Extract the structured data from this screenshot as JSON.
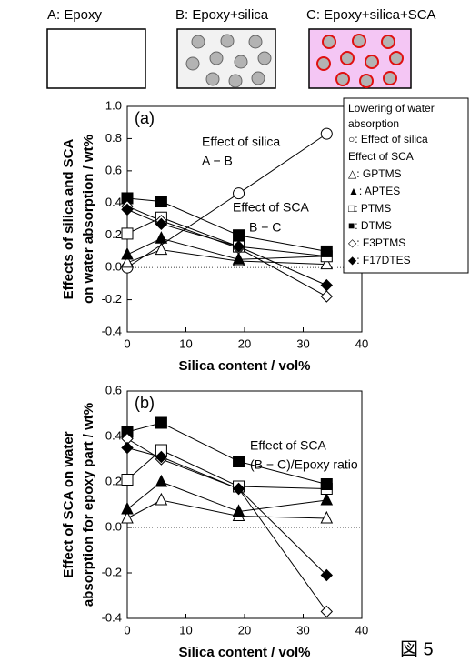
{
  "schematic": {
    "labels": [
      "A: Epoxy",
      "B: Epoxy+silica",
      "C: Epoxy+silica+SCA"
    ]
  },
  "figure_label": "図 5",
  "chart_data": [
    {
      "type": "line",
      "panel_label": "(a)",
      "ylabel": [
        "Effects of silica and SCA",
        "on water absorption / wt%"
      ],
      "xlabel": "Silica content / vol%",
      "xlim": [
        0,
        40
      ],
      "xticks": [
        0,
        10,
        20,
        30,
        40
      ],
      "ylim": [
        -0.4,
        1.0
      ],
      "yticks": [
        -0.4,
        -0.2,
        {
          "value": 0,
          "label": "0.0"
        },
        0.2,
        0.4,
        0.6,
        0.8,
        {
          "value": 1,
          "label": "1.0"
        }
      ],
      "annotations": [
        "Effect of silica",
        "A − B",
        "Effect of SCA",
        "B − C"
      ],
      "legend_title": [
        "Lowering of water",
        "absorption"
      ],
      "legend_group_title": "Effect of SCA",
      "series": [
        {
          "name": "○: Effect of silica",
          "marker": "circle",
          "fill": "#ffffff",
          "color": "#000000",
          "x": [
            0,
            19,
            34
          ],
          "values": [
            0.0,
            0.46,
            0.83
          ]
        },
        {
          "name": "△: GPTMS",
          "marker": "triangle",
          "fill": "#ffffff",
          "color": "#000000",
          "x": [
            0,
            5.8,
            19,
            34
          ],
          "values": [
            0.03,
            0.11,
            0.04,
            0.02
          ]
        },
        {
          "name": "▲: APTES",
          "marker": "triangle",
          "fill": "#000000",
          "color": "#000000",
          "x": [
            0,
            5.8,
            19,
            34
          ],
          "values": [
            0.08,
            0.18,
            0.05,
            0.07
          ]
        },
        {
          "name": "□: PTMS",
          "marker": "square",
          "fill": "#ffffff",
          "color": "#000000",
          "x": [
            0,
            5.8,
            19,
            34
          ],
          "values": [
            0.21,
            0.31,
            0.13,
            0.07
          ]
        },
        {
          "name": "■: DTMS",
          "marker": "square",
          "fill": "#000000",
          "color": "#000000",
          "x": [
            0,
            5.8,
            19,
            34
          ],
          "values": [
            0.43,
            0.41,
            0.2,
            0.1
          ]
        },
        {
          "name": "◇: F3PTMS",
          "marker": "diamond",
          "fill": "#ffffff",
          "color": "#000000",
          "x": [
            0,
            5.8,
            19,
            34
          ],
          "values": [
            0.38,
            0.29,
            0.12,
            -0.18
          ]
        },
        {
          "name": "◆: F17DTES",
          "marker": "diamond",
          "fill": "#000000",
          "color": "#000000",
          "x": [
            0,
            5.8,
            19,
            34
          ],
          "values": [
            0.36,
            0.27,
            0.13,
            -0.11
          ]
        }
      ]
    },
    {
      "type": "line",
      "panel_label": "(b)",
      "ylabel": [
        "Effect of SCA on water",
        "absorption for epoxy part / wt%"
      ],
      "xlabel": "Silica content / vol%",
      "xlim": [
        0,
        40
      ],
      "xticks": [
        0,
        10,
        20,
        30,
        40
      ],
      "ylim": [
        -0.4,
        0.6
      ],
      "yticks": [
        -0.4,
        -0.2,
        {
          "value": 0,
          "label": "0.0"
        },
        0.2,
        0.4,
        0.6
      ],
      "annotations": [
        "Effect of SCA",
        "(B − C)/Epoxy ratio"
      ],
      "series": [
        {
          "marker": "triangle",
          "fill": "#ffffff",
          "color": "#000000",
          "x": [
            0,
            5.8,
            19,
            34
          ],
          "values": [
            0.04,
            0.12,
            0.05,
            0.04
          ]
        },
        {
          "marker": "triangle",
          "fill": "#000000",
          "color": "#000000",
          "x": [
            0,
            5.8,
            19,
            34
          ],
          "values": [
            0.08,
            0.2,
            0.07,
            0.12
          ]
        },
        {
          "marker": "square",
          "fill": "#ffffff",
          "color": "#000000",
          "x": [
            0,
            5.8,
            19,
            34
          ],
          "values": [
            0.21,
            0.34,
            0.18,
            0.17
          ]
        },
        {
          "marker": "square",
          "fill": "#000000",
          "color": "#000000",
          "x": [
            0,
            5.8,
            19,
            34
          ],
          "values": [
            0.42,
            0.46,
            0.29,
            0.19
          ]
        },
        {
          "marker": "diamond",
          "fill": "#ffffff",
          "color": "#000000",
          "x": [
            0,
            5.8,
            19,
            34
          ],
          "values": [
            0.39,
            0.3,
            0.17,
            -0.37
          ]
        },
        {
          "marker": "diamond",
          "fill": "#000000",
          "color": "#000000",
          "x": [
            0,
            5.8,
            19,
            34
          ],
          "values": [
            0.35,
            0.31,
            0.17,
            -0.21
          ]
        }
      ]
    }
  ]
}
